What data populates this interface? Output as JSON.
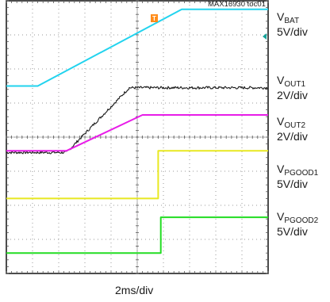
{
  "header": {
    "ref_id": "MAX16930 toc01"
  },
  "markers": {
    "trigger_icon": "trigger-T-icon",
    "trigger_letter": "T",
    "ref_marker_icon": "left-arrow-icon"
  },
  "channels": [
    {
      "id": "vbat",
      "main": "V",
      "sub": "BAT",
      "scale": "5V/div"
    },
    {
      "id": "vout1",
      "main": "V",
      "sub": "OUT1",
      "scale": "2V/div"
    },
    {
      "id": "vout2",
      "main": "V",
      "sub": "OUT2",
      "scale": "2V/div"
    },
    {
      "id": "vpgood1",
      "main": "V",
      "sub": "PGOOD1",
      "scale": "5V/div"
    },
    {
      "id": "vpgood2",
      "main": "V",
      "sub": "PGOOD2",
      "scale": "5V/div"
    }
  ],
  "footer": {
    "timebase": "2ms/div"
  },
  "chart_data": {
    "type": "line",
    "grid": true,
    "x_divisions": 10,
    "y_divisions": 8,
    "x_unit": "div",
    "y_unit": "div",
    "xlim": [
      0,
      10
    ],
    "ylim": [
      0,
      8
    ],
    "series": [
      {
        "name": "VBAT",
        "color": "#22d3ee",
        "noise": 0,
        "points": [
          [
            0,
            5.5
          ],
          [
            1.2,
            5.5
          ],
          [
            6.7,
            7.75
          ],
          [
            10,
            7.75
          ]
        ]
      },
      {
        "name": "VOUT1",
        "color": "#1a1a1a",
        "noise": 0.04,
        "points": [
          [
            0,
            3.55
          ],
          [
            2.3,
            3.55
          ],
          [
            4.7,
            5.45
          ],
          [
            10,
            5.45
          ]
        ]
      },
      {
        "name": "VOUT2",
        "color": "#e81ce8",
        "noise": 0,
        "points": [
          [
            0,
            3.6
          ],
          [
            2.3,
            3.6
          ],
          [
            5.2,
            4.65
          ],
          [
            10,
            4.65
          ]
        ]
      },
      {
        "name": "VPGOOD1",
        "color": "#e8e820",
        "noise": 0,
        "points": [
          [
            0,
            2.2
          ],
          [
            5.8,
            2.2
          ],
          [
            5.8,
            3.6
          ],
          [
            10,
            3.6
          ]
        ]
      },
      {
        "name": "VPGOOD2",
        "color": "#22dd22",
        "noise": 0,
        "points": [
          [
            0,
            0.6
          ],
          [
            5.9,
            0.6
          ],
          [
            5.9,
            1.65
          ],
          [
            10,
            1.65
          ]
        ]
      }
    ]
  }
}
